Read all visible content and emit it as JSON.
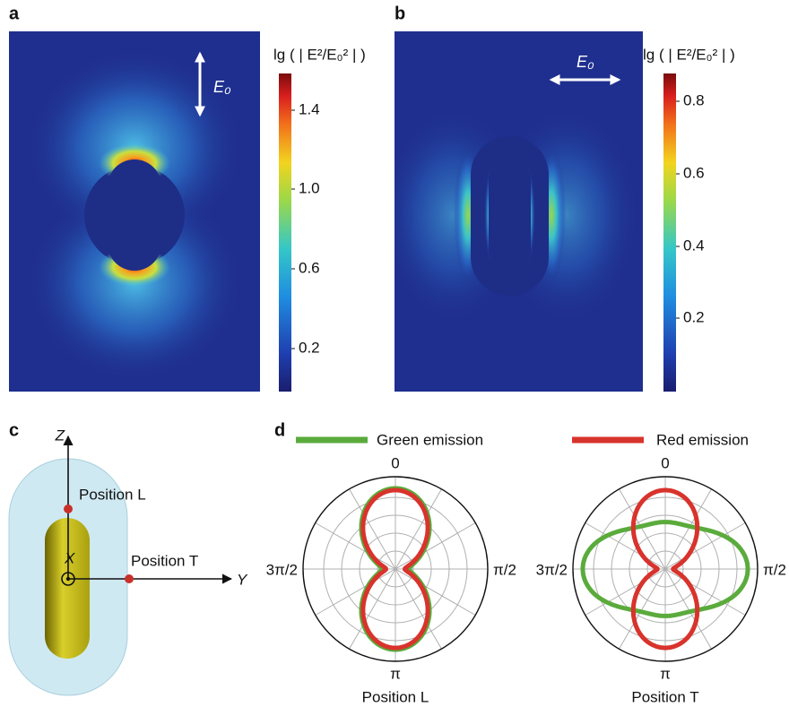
{
  "panels": {
    "a": {
      "label": "a",
      "field": "E₀",
      "colorbar": {
        "title": "lg ( | E²/E₀² | )",
        "ticks": [
          "1.4",
          "1.0",
          "0.6",
          "0.2"
        ]
      }
    },
    "b": {
      "label": "b",
      "field": "E₀",
      "colorbar": {
        "title": "lg ( | E²/E₀² | )",
        "ticks": [
          "0.8",
          "0.6",
          "0.4",
          "0.2"
        ]
      }
    },
    "c": {
      "label": "c",
      "axes": {
        "z": "Z",
        "y": "Y",
        "x": "X"
      },
      "positions": [
        "Position L",
        "Position T"
      ]
    },
    "d": {
      "label": "d",
      "legend": [
        "Green emission",
        "Red emission"
      ],
      "angles": [
        "0",
        "π/2",
        "π",
        "3π/2"
      ],
      "plots": [
        "Position L",
        "Position T"
      ]
    }
  }
}
